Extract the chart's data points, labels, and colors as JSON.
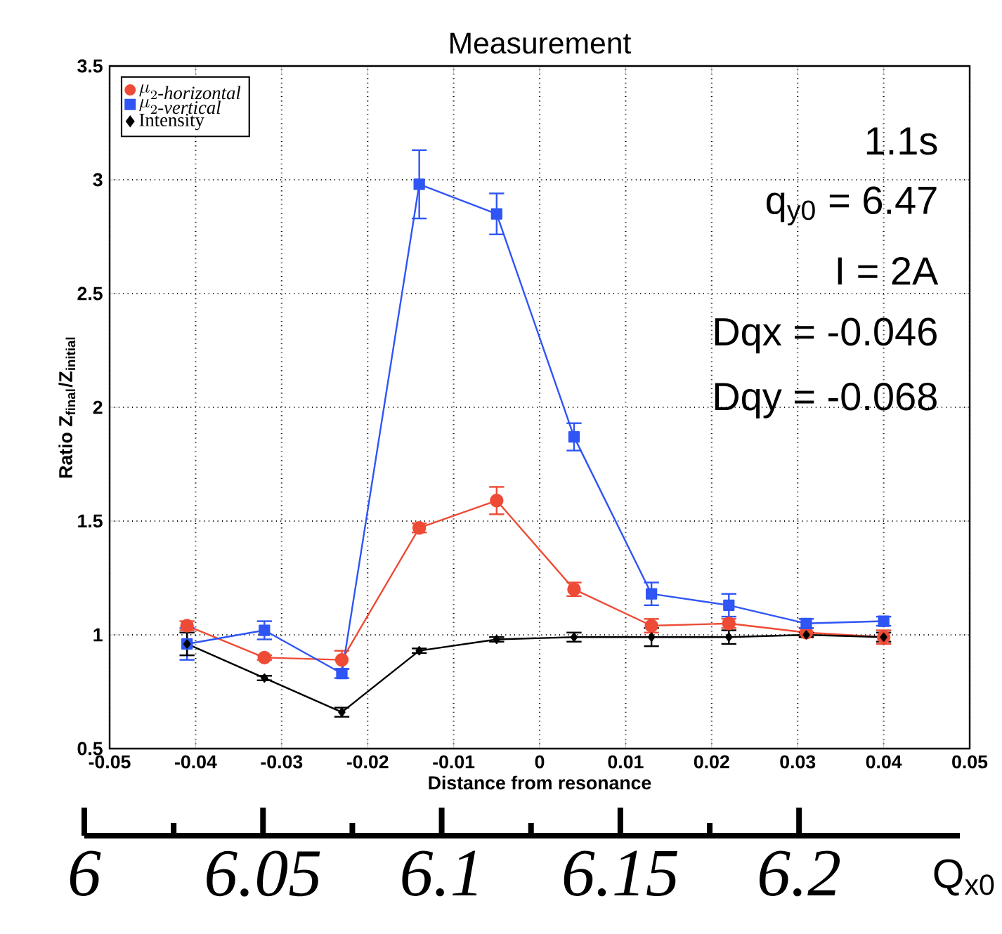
{
  "chart_data": {
    "type": "line",
    "title": "Measurement",
    "xlabel": "Distance from resonance",
    "ylabel": "Ratio Z$_{final}$/Z$_{initial}$",
    "x": [
      -0.041,
      -0.032,
      -0.023,
      -0.014,
      -0.005,
      0.004,
      0.013,
      0.022,
      0.031,
      0.04
    ],
    "series": [
      {
        "name": "\\mu_{2\\textit{-horizontal}}",
        "color": "#ee4b36",
        "marker": "circle",
        "values": [
          1.04,
          0.9,
          0.89,
          1.47,
          1.59,
          1.2,
          1.04,
          1.05,
          1.01,
          0.99
        ],
        "errors": [
          0.02,
          0.01,
          0.04,
          0.02,
          0.06,
          0.03,
          0.03,
          0.02,
          0.02,
          0.03
        ]
      },
      {
        "name": "\\mu_{2\\textit{-vertical}}",
        "color": "#2f55f5",
        "marker": "square",
        "values": [
          0.96,
          1.02,
          0.83,
          2.98,
          2.85,
          1.87,
          1.18,
          1.13,
          1.05,
          1.06
        ],
        "errors": [
          0.07,
          0.04,
          0.02,
          0.15,
          0.09,
          0.06,
          0.05,
          0.05,
          0.02,
          0.02
        ]
      },
      {
        "name": "Intensity",
        "color": "#000000",
        "marker": "diamond",
        "values": [
          0.96,
          0.81,
          0.66,
          0.93,
          0.98,
          0.99,
          0.99,
          0.99,
          1.0,
          0.99
        ],
        "errors": [
          0.05,
          0.01,
          0.02,
          0.01,
          0.01,
          0.02,
          0.04,
          0.03,
          0.01,
          0.02
        ]
      }
    ],
    "xlim": [
      -0.05,
      0.05
    ],
    "xticks": [
      -0.05,
      -0.04,
      -0.03,
      -0.02,
      -0.01,
      0,
      0.01,
      0.02,
      0.03,
      0.04,
      0.05
    ],
    "ylim": [
      0.5,
      3.5
    ],
    "yticks": [
      0.5,
      1,
      1.5,
      2,
      2.5,
      3,
      3.5
    ],
    "x2label": "Q$_{x0}$",
    "x2lim": [
      6,
      6.245
    ],
    "x2ticks": [
      6,
      6.05,
      6.1,
      6.15,
      6.2
    ],
    "annotations": [
      "1.1s",
      "q$_{y0}$ = 6.47",
      "I = 2A",
      "Dqx = -0.046",
      "Dqy = -0.068"
    ],
    "grid": true,
    "legend": "top left",
    "line_style": "solid"
  }
}
